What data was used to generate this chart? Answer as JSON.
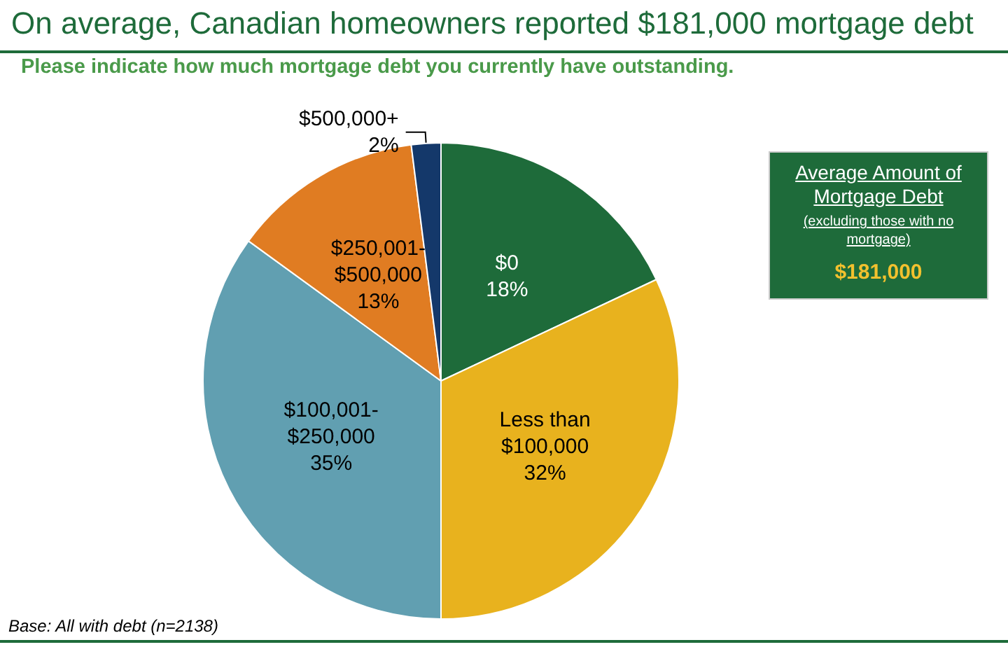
{
  "chart_data": {
    "type": "pie",
    "title": "On average, Canadian homeowners reported $181,000 mortgage debt",
    "subtitle": "Please indicate how much mortgage debt you currently have outstanding.",
    "categories": [
      "$0",
      "Less than\n$100,000",
      "$100,001-\n$250,000",
      "$250,001-\n$500,000",
      "$500,000+"
    ],
    "values": [
      18,
      32,
      35,
      13,
      2
    ],
    "value_labels": [
      "18%",
      "32%",
      "35%",
      "13%",
      "2%"
    ],
    "colors": [
      "#1e6b3a",
      "#e8b21e",
      "#619fb1",
      "#e07c22",
      "#14386a"
    ],
    "legend": false,
    "annotations": [
      "Average Amount of Mortgage Debt",
      "(excluding those with no mortgage)",
      "$181,000",
      "Base: All with debt (n=2138)"
    ]
  }
}
